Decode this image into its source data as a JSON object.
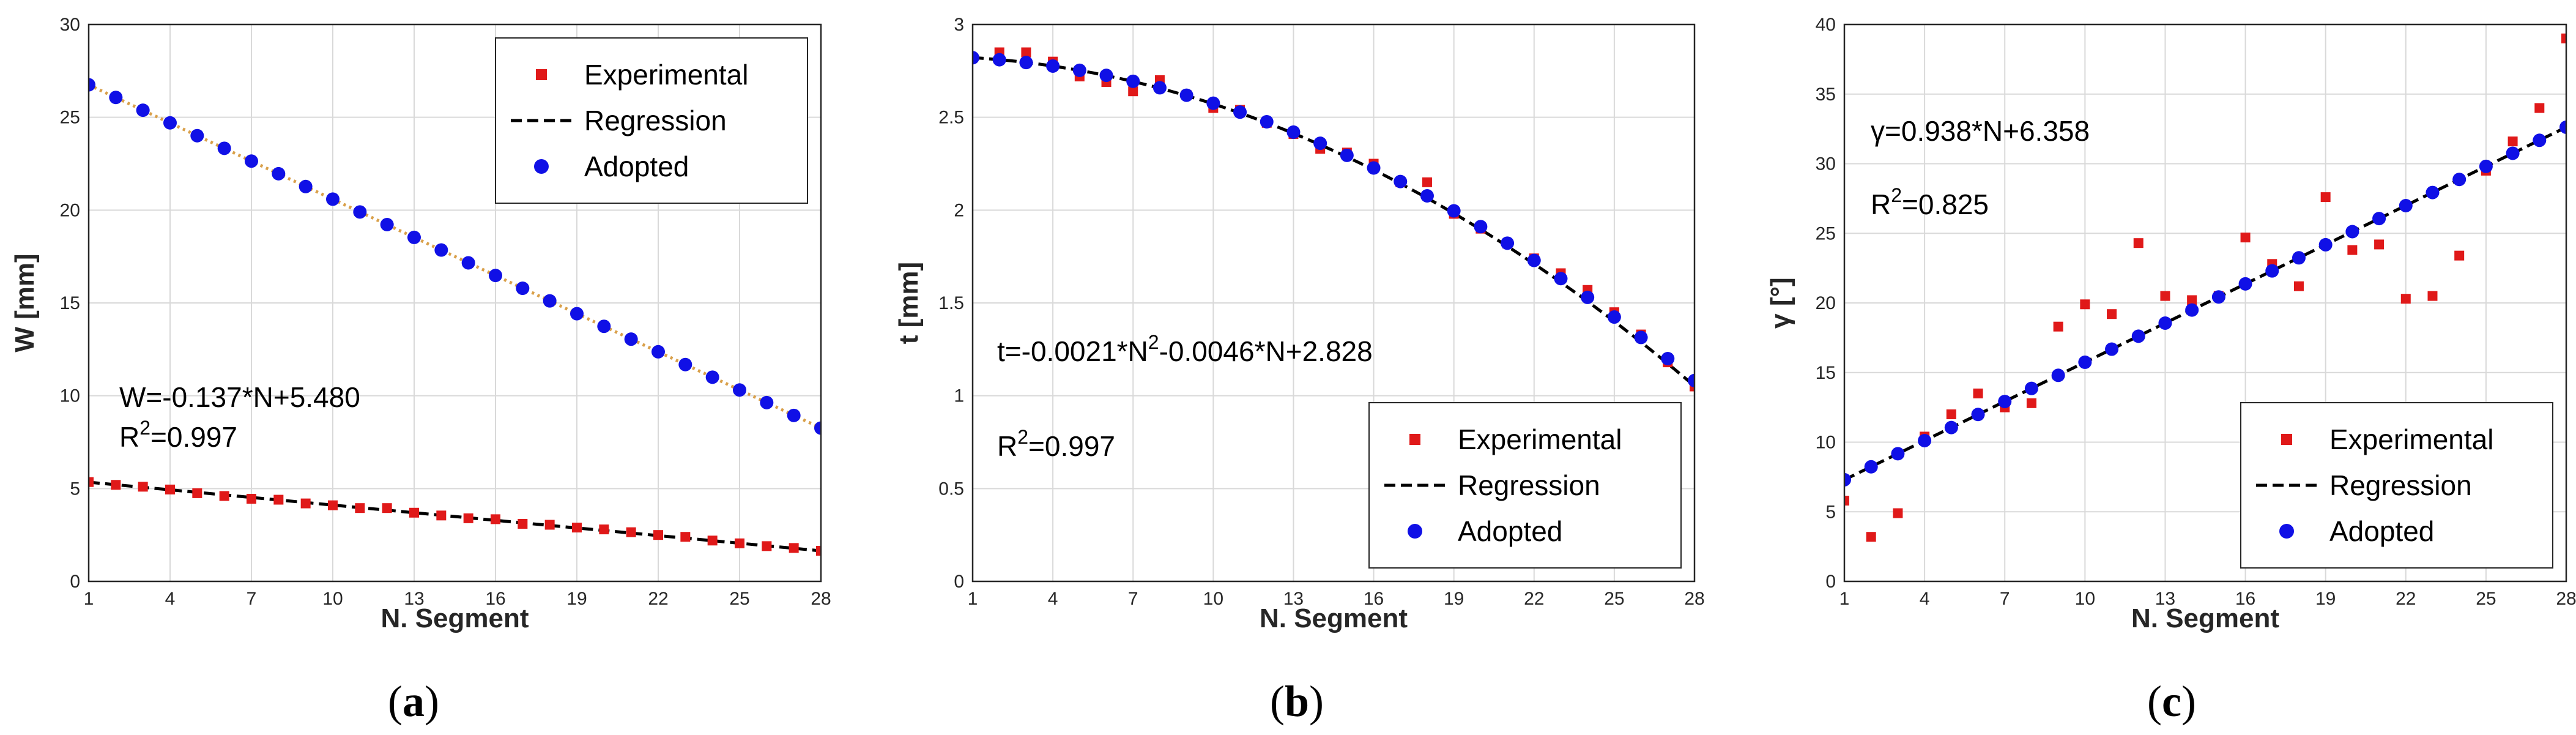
{
  "figure": {
    "colors": {
      "experimental": "#e01919",
      "regression": "#000000",
      "adopted": "#1010e6",
      "grid": "#d9d9d9",
      "axis": "#262626",
      "fit_line": "#d9a04a"
    },
    "legend_labels": {
      "experimental": "Experimental",
      "regression": "Regression",
      "adopted": "Adopted"
    },
    "xticks": [
      "1",
      "4",
      "7",
      "10",
      "13",
      "16",
      "19",
      "22",
      "25",
      "28"
    ]
  },
  "chart_data": [
    {
      "type": "scatter",
      "panel_label": {
        "open": "(",
        "letter": "a",
        "close": ")"
      },
      "xlabel": "N. Segment",
      "ylabel": "W [mm]",
      "xlim": [
        1,
        28
      ],
      "ylim": [
        0,
        30
      ],
      "yticks": [
        "0",
        "5",
        "10",
        "15",
        "20",
        "25",
        "30"
      ],
      "annotations": {
        "equation": "W=-0.137*N+5.480",
        "r2_prefix": "R",
        "r2_exp": "2",
        "r2_value": "=0.997"
      },
      "legend_position": "top-right",
      "series": [
        {
          "name": "Experimental",
          "marker": "square",
          "x": [
            1,
            2,
            3,
            4,
            5,
            6,
            7,
            8,
            9,
            10,
            11,
            12,
            13,
            14,
            15,
            16,
            17,
            18,
            19,
            20,
            21,
            22,
            23,
            24,
            25,
            26,
            27,
            28
          ],
          "values": [
            5.35,
            5.2,
            5.1,
            4.95,
            4.75,
            4.6,
            4.45,
            4.4,
            4.2,
            4.1,
            3.95,
            3.95,
            3.7,
            3.55,
            3.4,
            3.35,
            3.1,
            3.05,
            2.9,
            2.8,
            2.65,
            2.5,
            2.4,
            2.2,
            2.05,
            1.9,
            1.8,
            1.65
          ]
        },
        {
          "name": "Regression",
          "marker": "dashed-line",
          "x": [
            1,
            28
          ],
          "values": [
            5.343,
            1.644
          ]
        },
        {
          "name": "Adopted",
          "marker": "circle",
          "x": [
            1,
            2,
            3,
            4,
            5,
            6,
            7,
            8,
            9,
            10,
            11,
            12,
            13,
            14,
            15,
            16,
            17,
            18,
            19,
            20,
            21,
            22,
            23,
            24,
            25,
            26,
            27,
            28
          ],
          "values": [
            26.75,
            26.07,
            25.38,
            24.7,
            24.01,
            23.33,
            22.64,
            21.96,
            21.27,
            20.59,
            19.9,
            19.22,
            18.53,
            17.85,
            17.16,
            16.48,
            15.79,
            15.11,
            14.42,
            13.74,
            13.05,
            12.37,
            11.68,
            11.0,
            10.31,
            9.63,
            8.94,
            8.26
          ]
        },
        {
          "name": "Adopted fit",
          "marker": "dotted-line",
          "x": [
            1,
            28
          ],
          "values": [
            26.75,
            8.26
          ]
        }
      ]
    },
    {
      "type": "scatter",
      "panel_label": {
        "open": "(",
        "letter": "b",
        "close": ")"
      },
      "xlabel": "N. Segment",
      "ylabel": "t [mm]",
      "xlim": [
        1,
        28
      ],
      "ylim": [
        0,
        3
      ],
      "yticks": [
        "0",
        "0.5",
        "1",
        "1.5",
        "2",
        "2.5",
        "3"
      ],
      "annotations": {
        "equation_pre": "t=-0.0021*N",
        "equation_exp": "2",
        "equation_post": "-0.0046*N+2.828",
        "r2_prefix": "R",
        "r2_exp": "2",
        "r2_value": "=0.997"
      },
      "legend_position": "bottom-right",
      "series": [
        {
          "name": "Experimental",
          "marker": "square",
          "x": [
            2,
            3,
            4,
            5,
            6,
            7,
            8,
            9,
            10,
            11,
            12,
            13,
            14,
            15,
            16,
            17,
            18,
            19,
            20,
            21,
            22,
            23,
            24,
            25,
            26,
            27,
            28
          ],
          "values": [
            2.85,
            2.85,
            2.8,
            2.72,
            2.69,
            2.64,
            2.7,
            2.62,
            2.55,
            2.54,
            2.47,
            2.41,
            2.33,
            2.31,
            2.25,
            2.15,
            2.15,
            1.98,
            1.9,
            1.82,
            1.74,
            1.66,
            1.57,
            1.45,
            1.33,
            1.18,
            1.05
          ]
        },
        {
          "name": "Regression",
          "marker": "dashed-line",
          "function": {
            "a": -0.0021,
            "b": -0.0046,
            "c": 2.828
          }
        },
        {
          "name": "Adopted",
          "marker": "circle",
          "x": [
            1,
            2,
            3,
            4,
            5,
            6,
            7,
            8,
            9,
            10,
            11,
            12,
            13,
            14,
            15,
            16,
            17,
            18,
            19,
            20,
            21,
            22,
            23,
            24,
            25,
            26,
            27,
            28
          ],
          "values": [
            2.821,
            2.81,
            2.795,
            2.776,
            2.753,
            2.726,
            2.694,
            2.659,
            2.619,
            2.576,
            2.528,
            2.476,
            2.42,
            2.36,
            2.295,
            2.227,
            2.154,
            2.077,
            1.996,
            1.911,
            1.822,
            1.729,
            1.631,
            1.53,
            1.424,
            1.314,
            1.2,
            1.082
          ]
        }
      ]
    },
    {
      "type": "scatter",
      "panel_label": {
        "open": "(",
        "letter": "c",
        "close": ")"
      },
      "xlabel": "N. Segment",
      "ylabel": "γ [°]",
      "xlim": [
        1,
        28
      ],
      "ylim": [
        0,
        40
      ],
      "yticks": [
        "0",
        "5",
        "10",
        "15",
        "20",
        "25",
        "30",
        "35",
        "40"
      ],
      "annotations": {
        "equation": "γ=0.938*N+6.358",
        "r2_prefix": "R",
        "r2_exp": "2",
        "r2_value": "=0.825"
      },
      "legend_position": "bottom-right",
      "series": [
        {
          "name": "Experimental",
          "marker": "square",
          "x": [
            1,
            2,
            3,
            4,
            5,
            6,
            7,
            8,
            9,
            10,
            11,
            12,
            13,
            14,
            15,
            16,
            17,
            18,
            19,
            20,
            21,
            22,
            23,
            24,
            25,
            26,
            27,
            28
          ],
          "values": [
            5.8,
            3.2,
            4.9,
            10.4,
            12.0,
            13.5,
            12.5,
            12.8,
            18.3,
            19.9,
            19.2,
            24.3,
            20.5,
            20.2,
            20.5,
            24.7,
            22.8,
            21.2,
            27.6,
            23.8,
            24.2,
            20.3,
            20.5,
            23.4,
            29.5,
            31.6,
            34.0,
            39.0
          ]
        },
        {
          "name": "Regression",
          "marker": "dashed-line",
          "x": [
            1,
            28
          ],
          "values": [
            7.296,
            32.622
          ]
        },
        {
          "name": "Adopted",
          "marker": "circle",
          "x": [
            1,
            2,
            3,
            4,
            5,
            6,
            7,
            8,
            9,
            10,
            11,
            12,
            13,
            14,
            15,
            16,
            17,
            18,
            19,
            20,
            21,
            22,
            23,
            24,
            25,
            26,
            27,
            28
          ],
          "values": [
            7.3,
            8.23,
            9.17,
            10.11,
            11.05,
            11.99,
            12.92,
            13.86,
            14.8,
            15.74,
            16.68,
            17.61,
            18.55,
            19.49,
            20.43,
            21.37,
            22.3,
            23.24,
            24.18,
            25.12,
            26.06,
            26.99,
            27.93,
            28.87,
            29.81,
            30.75,
            31.68,
            32.62
          ]
        }
      ]
    }
  ]
}
